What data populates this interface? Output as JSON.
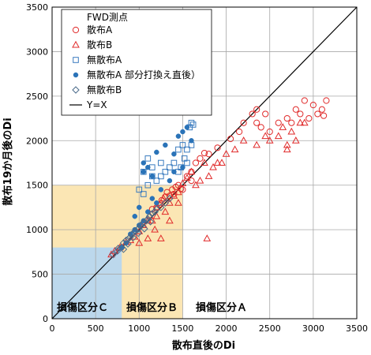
{
  "chart_data": {
    "type": "scatter",
    "xlabel": "散布直後のDi",
    "ylabel": "散布19か月後のDi",
    "xlim": [
      0,
      3500
    ],
    "ylim": [
      0,
      3500
    ],
    "xticks": [
      "0",
      "500",
      "1000",
      "1500",
      "2000",
      "2500",
      "3000",
      "3500"
    ],
    "yticks": [
      "0",
      "500",
      "1000",
      "1500",
      "2000",
      "2500",
      "3000",
      "3500"
    ],
    "grid": true,
    "legend_title": "FWD測点",
    "legend_position": "top-left",
    "zones": [
      {
        "label": "損傷区分Ｃ",
        "x": [
          0,
          800
        ],
        "y": [
          0,
          800
        ],
        "color": "#bcd8ec"
      },
      {
        "label": "損傷区分Ｂ",
        "x": [
          0,
          1500
        ],
        "y": [
          0,
          1500
        ],
        "color": "#fbe6b4"
      },
      {
        "label": "損傷区分Ａ",
        "x": [
          1500,
          3500
        ],
        "y": [
          0,
          3500
        ],
        "color": "none"
      }
    ],
    "series": [
      {
        "name": "散布A",
        "marker": "circle-open",
        "color": "#e02a2a",
        "points": [
          [
            1150,
            1230
          ],
          [
            1200,
            1250
          ],
          [
            1230,
            1280
          ],
          [
            1260,
            1330
          ],
          [
            1300,
            1370
          ],
          [
            1320,
            1420
          ],
          [
            1380,
            1450
          ],
          [
            1420,
            1480
          ],
          [
            1450,
            1500
          ],
          [
            1480,
            1460
          ],
          [
            1400,
            1400
          ],
          [
            1350,
            1380
          ],
          [
            1550,
            1600
          ],
          [
            1600,
            1650
          ],
          [
            1650,
            1750
          ],
          [
            1700,
            1800
          ],
          [
            1750,
            1860
          ],
          [
            1800,
            1850
          ],
          [
            1900,
            1920
          ],
          [
            2050,
            2020
          ],
          [
            2300,
            2300
          ],
          [
            2350,
            2350
          ],
          [
            2200,
            2200
          ],
          [
            2400,
            2150
          ],
          [
            2500,
            2100
          ],
          [
            2600,
            2200
          ],
          [
            2700,
            2250
          ],
          [
            2750,
            2200
          ],
          [
            2800,
            2350
          ],
          [
            2850,
            2300
          ],
          [
            2900,
            2450
          ],
          [
            2950,
            2250
          ],
          [
            3000,
            2400
          ],
          [
            3050,
            2300
          ],
          [
            3100,
            2350
          ],
          [
            3120,
            2280
          ],
          [
            3150,
            2450
          ],
          [
            2350,
            2200
          ],
          [
            2450,
            2300
          ],
          [
            2150,
            2100
          ],
          [
            1600,
            1550
          ],
          [
            1500,
            1450
          ]
        ]
      },
      {
        "name": "散布B",
        "marker": "triangle-open",
        "color": "#e02a2a",
        "points": [
          [
            680,
            720
          ],
          [
            720,
            760
          ],
          [
            780,
            800
          ],
          [
            850,
            860
          ],
          [
            900,
            880
          ],
          [
            950,
            920
          ],
          [
            1000,
            980
          ],
          [
            1050,
            1050
          ],
          [
            1100,
            1100
          ],
          [
            1120,
            1160
          ],
          [
            1150,
            1100
          ],
          [
            1180,
            1000
          ],
          [
            1200,
            1250
          ],
          [
            1250,
            1300
          ],
          [
            1280,
            1350
          ],
          [
            1300,
            1200
          ],
          [
            1350,
            1300
          ],
          [
            1400,
            1380
          ],
          [
            1450,
            1420
          ],
          [
            1500,
            1520
          ],
          [
            1550,
            1580
          ],
          [
            1600,
            1650
          ],
          [
            1650,
            1500
          ],
          [
            1700,
            1550
          ],
          [
            1750,
            1750
          ],
          [
            1780,
            900
          ],
          [
            1800,
            1600
          ],
          [
            1850,
            1700
          ],
          [
            1900,
            1750
          ],
          [
            1950,
            1750
          ],
          [
            2000,
            1850
          ],
          [
            2100,
            1900
          ],
          [
            2200,
            2000
          ],
          [
            2350,
            1950
          ],
          [
            2450,
            2050
          ],
          [
            2500,
            2000
          ],
          [
            2600,
            2050
          ],
          [
            2650,
            2150
          ],
          [
            2700,
            1950
          ],
          [
            2750,
            2100
          ],
          [
            2800,
            2000
          ],
          [
            2850,
            2200
          ],
          [
            2900,
            2200
          ],
          [
            2700,
            1900
          ],
          [
            1450,
            1300
          ],
          [
            1350,
            1100
          ],
          [
            1250,
            900
          ],
          [
            1200,
            1150
          ],
          [
            1100,
            900
          ],
          [
            1000,
            850
          ]
        ]
      },
      {
        "name": "無散布A",
        "marker": "square-open",
        "color": "#3a7bbf",
        "points": [
          [
            1050,
            1650
          ],
          [
            1100,
            1800
          ],
          [
            1150,
            1700
          ],
          [
            1250,
            1750
          ],
          [
            1300,
            1650
          ],
          [
            1350,
            1700
          ],
          [
            1400,
            1750
          ],
          [
            1450,
            1900
          ],
          [
            1500,
            1950
          ],
          [
            1550,
            1900
          ],
          [
            1600,
            1950
          ],
          [
            1580,
            2150
          ],
          [
            1600,
            2200
          ],
          [
            1620,
            2180
          ],
          [
            1520,
            1800
          ],
          [
            1480,
            1700
          ],
          [
            1450,
            1650
          ],
          [
            1550,
            1750
          ],
          [
            1200,
            1550
          ],
          [
            1100,
            1500
          ],
          [
            1000,
            1450
          ],
          [
            1150,
            1600
          ],
          [
            1050,
            1400
          ],
          [
            1250,
            1600
          ]
        ]
      },
      {
        "name": "無散布A 部分打換え直後）",
        "marker": "circle-filled",
        "color": "#2a73b8",
        "points": [
          [
            950,
            1150
          ],
          [
            1000,
            1250
          ],
          [
            1050,
            1650
          ],
          [
            1050,
            1750
          ],
          [
            1100,
            1700
          ],
          [
            1150,
            1600
          ],
          [
            1200,
            1870
          ],
          [
            1300,
            1950
          ],
          [
            1400,
            1850
          ],
          [
            1450,
            2050
          ],
          [
            1500,
            2100
          ],
          [
            1550,
            2150
          ],
          [
            1600,
            2000
          ],
          [
            1500,
            1700
          ],
          [
            1400,
            1650
          ],
          [
            1350,
            1550
          ],
          [
            1250,
            1450
          ],
          [
            1200,
            1300
          ],
          [
            1100,
            1200
          ],
          [
            1050,
            1100
          ],
          [
            950,
            1000
          ],
          [
            900,
            950
          ],
          [
            850,
            850
          ],
          [
            800,
            800
          ],
          [
            1000,
            1050
          ],
          [
            1150,
            1350
          ]
        ]
      },
      {
        "name": "無散布B",
        "marker": "diamond-open",
        "color": "#4a6a8a",
        "points": [
          [
            700,
            720
          ],
          [
            750,
            760
          ],
          [
            800,
            800
          ],
          [
            820,
            850
          ],
          [
            850,
            880
          ],
          [
            880,
            900
          ],
          [
            900,
            920
          ],
          [
            920,
            950
          ],
          [
            950,
            980
          ],
          [
            980,
            1000
          ],
          [
            1000,
            1020
          ],
          [
            1020,
            1050
          ],
          [
            1050,
            1080
          ],
          [
            1080,
            1100
          ],
          [
            1100,
            1120
          ],
          [
            1120,
            1150
          ],
          [
            1150,
            1180
          ],
          [
            1180,
            1200
          ],
          [
            1200,
            1230
          ],
          [
            1250,
            1250
          ],
          [
            1300,
            1300
          ],
          [
            1350,
            1350
          ],
          [
            760,
            790
          ],
          [
            820,
            780
          ],
          [
            870,
            840
          ],
          [
            930,
            910
          ],
          [
            990,
            960
          ],
          [
            1060,
            1010
          ],
          [
            1130,
            1090
          ]
        ]
      },
      {
        "name": "Y=X",
        "marker": "line",
        "color": "#000000",
        "points": [
          [
            0,
            0
          ],
          [
            3500,
            3500
          ]
        ]
      }
    ]
  }
}
